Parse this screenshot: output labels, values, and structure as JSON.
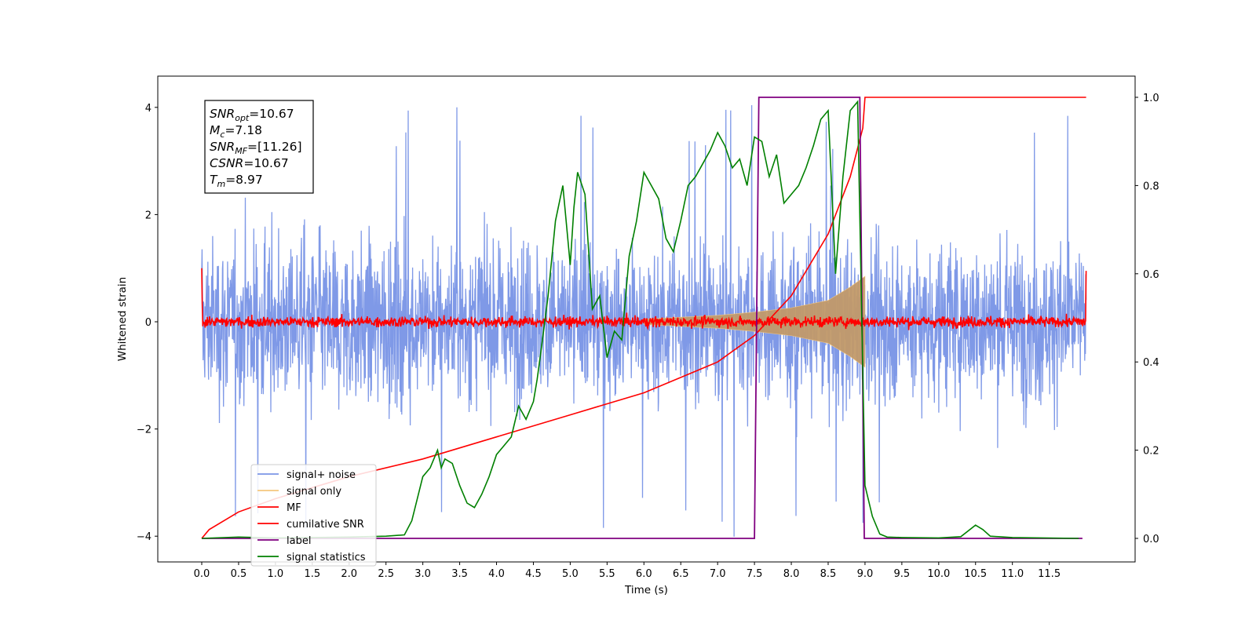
{
  "chart_data": {
    "type": "line",
    "title": "",
    "xlabel": "Time (s)",
    "ylabel": "Whitened strain",
    "xlim": [
      -0.6,
      12.4
    ],
    "ylim": [
      -4.45,
      4.6
    ],
    "ylim_right": [
      -0.05,
      1.05
    ],
    "xticks": [
      "0.0",
      "0.5",
      "1.0",
      "1.5",
      "2.0",
      "2.5",
      "3.0",
      "3.5",
      "4.0",
      "4.5",
      "5.0",
      "5.5",
      "6.0",
      "6.5",
      "7.0",
      "7.5",
      "8.0",
      "8.5",
      "9.0",
      "9.5",
      "10.0",
      "10.5",
      "11.0",
      "11.5"
    ],
    "yticks_left": [
      "4",
      "2",
      "0",
      "−2",
      "−4"
    ],
    "yticks_right": [
      "1.0",
      "0.8",
      "0.6",
      "0.4",
      "0.2",
      "0.0"
    ],
    "grid": false,
    "legend_position": "lower-left",
    "annotation_box": {
      "lines": [
        {
          "main": "SNR",
          "sub": "opt",
          "value": "=10.67"
        },
        {
          "main": "M",
          "sub": "c",
          "value": "=7.18"
        },
        {
          "main": "SNR",
          "sub": "MF",
          "value": "=[11.26]"
        },
        {
          "main": "CSNR",
          "sub": "",
          "value": "=10.67"
        },
        {
          "main": "T",
          "sub": "m",
          "value": "=8.97"
        }
      ]
    },
    "series": [
      {
        "name": "signal+ noise",
        "color": "#7b96e6",
        "axis": "left",
        "style": "noise band",
        "x_range": [
          0.0,
          12.0
        ],
        "typical_amplitude": 2.0,
        "max_observed": 4.15,
        "min_observed": -4.05
      },
      {
        "name": "signal only",
        "color": "#f5c77e",
        "axis": "left",
        "style": "chirp, amplitude growing to merger",
        "x": [
          6.0,
          7.0,
          7.5,
          8.0,
          8.5,
          8.8,
          9.0
        ],
        "amplitude": [
          0.05,
          0.12,
          0.18,
          0.26,
          0.4,
          0.65,
          0.85
        ]
      },
      {
        "name": "MF",
        "color": "#ff0000",
        "axis": "left",
        "style": "noise around zero",
        "x_range": [
          0.0,
          12.0
        ],
        "typical_amplitude": 0.15,
        "start_value": 1.0,
        "end_value": 0.95
      },
      {
        "name": "cumilative SNR",
        "color": "#ff0000",
        "axis": "right",
        "x": [
          0.0,
          0.1,
          0.5,
          1.0,
          2.0,
          3.0,
          4.0,
          5.0,
          6.0,
          7.0,
          7.5,
          8.0,
          8.5,
          8.8,
          8.97,
          9.0,
          12.0
        ],
        "y": [
          0.0,
          0.02,
          0.06,
          0.09,
          0.14,
          0.18,
          0.23,
          0.28,
          0.33,
          0.4,
          0.46,
          0.55,
          0.69,
          0.82,
          0.93,
          1.0,
          1.0
        ]
      },
      {
        "name": "label",
        "color": "#800080",
        "axis": "right",
        "x": [
          0.0,
          7.5,
          7.56,
          8.93,
          8.99,
          11.95
        ],
        "y": [
          0.0,
          0.0,
          1.0,
          1.0,
          0.0,
          0.0
        ]
      },
      {
        "name": "signal statistics",
        "color": "#008000",
        "axis": "right",
        "x": [
          0.0,
          0.5,
          1.0,
          1.5,
          2.0,
          2.5,
          2.75,
          2.85,
          3.0,
          3.1,
          3.2,
          3.25,
          3.3,
          3.4,
          3.5,
          3.6,
          3.7,
          3.8,
          3.9,
          4.0,
          4.1,
          4.2,
          4.3,
          4.4,
          4.5,
          4.55,
          4.6,
          4.7,
          4.8,
          4.9,
          5.0,
          5.05,
          5.1,
          5.2,
          5.3,
          5.4,
          5.5,
          5.6,
          5.7,
          5.8,
          5.9,
          6.0,
          6.1,
          6.2,
          6.3,
          6.4,
          6.5,
          6.6,
          6.7,
          6.8,
          6.9,
          7.0,
          7.1,
          7.2,
          7.3,
          7.4,
          7.5,
          7.6,
          7.7,
          7.8,
          7.9,
          8.0,
          8.1,
          8.2,
          8.3,
          8.4,
          8.5,
          8.6,
          8.7,
          8.8,
          8.9,
          9.0,
          9.1,
          9.2,
          9.3,
          9.5,
          10.0,
          10.3,
          10.5,
          10.6,
          10.7,
          11.0,
          11.9
        ],
        "y": [
          0.0,
          0.003,
          0.001,
          0.002,
          0.003,
          0.005,
          0.008,
          0.04,
          0.14,
          0.16,
          0.2,
          0.16,
          0.18,
          0.17,
          0.12,
          0.08,
          0.07,
          0.1,
          0.14,
          0.19,
          0.21,
          0.23,
          0.3,
          0.27,
          0.31,
          0.36,
          0.42,
          0.55,
          0.72,
          0.8,
          0.62,
          0.75,
          0.83,
          0.78,
          0.52,
          0.55,
          0.41,
          0.47,
          0.45,
          0.64,
          0.72,
          0.83,
          0.8,
          0.77,
          0.68,
          0.65,
          0.72,
          0.8,
          0.82,
          0.85,
          0.88,
          0.92,
          0.89,
          0.84,
          0.86,
          0.8,
          0.91,
          0.9,
          0.82,
          0.87,
          0.76,
          0.78,
          0.8,
          0.84,
          0.89,
          0.95,
          0.97,
          0.6,
          0.82,
          0.97,
          0.99,
          0.12,
          0.05,
          0.01,
          0.003,
          0.002,
          0.001,
          0.004,
          0.03,
          0.02,
          0.005,
          0.002,
          0.0
        ]
      }
    ]
  }
}
